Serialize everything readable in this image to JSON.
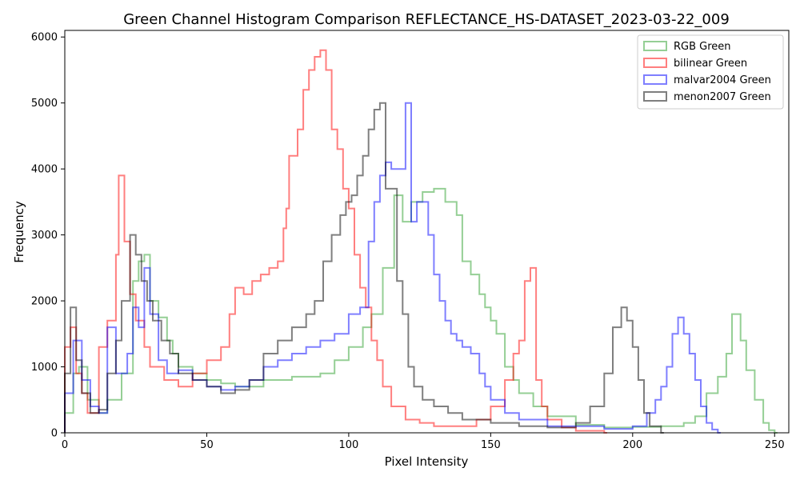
{
  "chart_data": {
    "type": "histogram",
    "title": "Green Channel Histogram Comparison REFLECTANCE_HS-DATASET_2023-03-22_009",
    "xlabel": "Pixel Intensity",
    "ylabel": "Frequency",
    "xlim": [
      0,
      255
    ],
    "ylim": [
      0,
      6100
    ],
    "xticks": [
      0,
      50,
      100,
      150,
      200,
      250
    ],
    "yticks": [
      0,
      1000,
      2000,
      3000,
      4000,
      5000,
      6000
    ],
    "grid": false,
    "legend_position": "top-right",
    "series": [
      {
        "name": "RGB Green",
        "color": "#2ca02c",
        "points": [
          [
            0,
            300
          ],
          [
            3,
            900
          ],
          [
            5,
            1000
          ],
          [
            8,
            500
          ],
          [
            12,
            300
          ],
          [
            15,
            500
          ],
          [
            20,
            900
          ],
          [
            24,
            2300
          ],
          [
            26,
            2600
          ],
          [
            28,
            2700
          ],
          [
            30,
            2000
          ],
          [
            33,
            1750
          ],
          [
            36,
            1400
          ],
          [
            38,
            1200
          ],
          [
            40,
            1000
          ],
          [
            45,
            900
          ],
          [
            50,
            800
          ],
          [
            55,
            750
          ],
          [
            60,
            700
          ],
          [
            70,
            800
          ],
          [
            80,
            850
          ],
          [
            90,
            900
          ],
          [
            95,
            1100
          ],
          [
            100,
            1300
          ],
          [
            105,
            1600
          ],
          [
            108,
            1800
          ],
          [
            112,
            2500
          ],
          [
            116,
            3600
          ],
          [
            119,
            3200
          ],
          [
            122,
            3500
          ],
          [
            126,
            3650
          ],
          [
            130,
            3700
          ],
          [
            134,
            3500
          ],
          [
            138,
            3300
          ],
          [
            140,
            2600
          ],
          [
            143,
            2400
          ],
          [
            146,
            2100
          ],
          [
            148,
            1900
          ],
          [
            150,
            1700
          ],
          [
            152,
            1500
          ],
          [
            155,
            1000
          ],
          [
            158,
            800
          ],
          [
            160,
            600
          ],
          [
            165,
            400
          ],
          [
            170,
            250
          ],
          [
            180,
            120
          ],
          [
            190,
            80
          ],
          [
            200,
            90
          ],
          [
            210,
            100
          ],
          [
            218,
            150
          ],
          [
            222,
            250
          ],
          [
            226,
            600
          ],
          [
            230,
            850
          ],
          [
            233,
            1200
          ],
          [
            235,
            1800
          ],
          [
            238,
            1400
          ],
          [
            240,
            950
          ],
          [
            243,
            500
          ],
          [
            246,
            150
          ],
          [
            248,
            40
          ],
          [
            250,
            0
          ]
        ]
      },
      {
        "name": "bilinear Green",
        "color": "#ff0000",
        "points": [
          [
            0,
            1300
          ],
          [
            2,
            1600
          ],
          [
            4,
            900
          ],
          [
            6,
            600
          ],
          [
            8,
            300
          ],
          [
            12,
            1300
          ],
          [
            15,
            1700
          ],
          [
            18,
            2700
          ],
          [
            19,
            3900
          ],
          [
            21,
            2900
          ],
          [
            23,
            2100
          ],
          [
            25,
            1700
          ],
          [
            28,
            1300
          ],
          [
            30,
            1000
          ],
          [
            35,
            800
          ],
          [
            40,
            700
          ],
          [
            45,
            900
          ],
          [
            50,
            1100
          ],
          [
            55,
            1300
          ],
          [
            58,
            1800
          ],
          [
            60,
            2200
          ],
          [
            63,
            2100
          ],
          [
            66,
            2300
          ],
          [
            69,
            2400
          ],
          [
            72,
            2500
          ],
          [
            75,
            2600
          ],
          [
            77,
            3100
          ],
          [
            78,
            3400
          ],
          [
            79,
            4200
          ],
          [
            82,
            4600
          ],
          [
            84,
            5200
          ],
          [
            86,
            5500
          ],
          [
            88,
            5700
          ],
          [
            90,
            5800
          ],
          [
            92,
            5500
          ],
          [
            94,
            4600
          ],
          [
            96,
            4300
          ],
          [
            98,
            3700
          ],
          [
            100,
            3400
          ],
          [
            102,
            2700
          ],
          [
            104,
            2200
          ],
          [
            106,
            1900
          ],
          [
            108,
            1400
          ],
          [
            110,
            1100
          ],
          [
            112,
            700
          ],
          [
            115,
            400
          ],
          [
            120,
            200
          ],
          [
            125,
            150
          ],
          [
            130,
            100
          ],
          [
            140,
            100
          ],
          [
            145,
            200
          ],
          [
            150,
            400
          ],
          [
            155,
            800
          ],
          [
            158,
            1200
          ],
          [
            160,
            1400
          ],
          [
            162,
            2300
          ],
          [
            164,
            2500
          ],
          [
            166,
            800
          ],
          [
            168,
            400
          ],
          [
            170,
            200
          ],
          [
            175,
            80
          ],
          [
            180,
            30
          ],
          [
            190,
            0
          ]
        ]
      },
      {
        "name": "malvar2004 Green",
        "color": "#0000ff",
        "points": [
          [
            0,
            600
          ],
          [
            3,
            1400
          ],
          [
            6,
            800
          ],
          [
            9,
            400
          ],
          [
            12,
            300
          ],
          [
            15,
            1600
          ],
          [
            18,
            900
          ],
          [
            22,
            1200
          ],
          [
            24,
            1900
          ],
          [
            26,
            1600
          ],
          [
            28,
            2500
          ],
          [
            30,
            1800
          ],
          [
            33,
            1100
          ],
          [
            36,
            900
          ],
          [
            40,
            950
          ],
          [
            45,
            800
          ],
          [
            50,
            700
          ],
          [
            55,
            650
          ],
          [
            60,
            700
          ],
          [
            65,
            800
          ],
          [
            70,
            1000
          ],
          [
            75,
            1100
          ],
          [
            80,
            1200
          ],
          [
            85,
            1300
          ],
          [
            90,
            1400
          ],
          [
            95,
            1500
          ],
          [
            100,
            1800
          ],
          [
            104,
            1900
          ],
          [
            107,
            2900
          ],
          [
            109,
            3500
          ],
          [
            111,
            3900
          ],
          [
            113,
            4100
          ],
          [
            115,
            4000
          ],
          [
            118,
            4000
          ],
          [
            120,
            5000
          ],
          [
            122,
            3200
          ],
          [
            124,
            3500
          ],
          [
            126,
            3500
          ],
          [
            128,
            3000
          ],
          [
            130,
            2400
          ],
          [
            132,
            2000
          ],
          [
            134,
            1700
          ],
          [
            136,
            1500
          ],
          [
            138,
            1400
          ],
          [
            140,
            1300
          ],
          [
            143,
            1200
          ],
          [
            146,
            900
          ],
          [
            148,
            700
          ],
          [
            150,
            500
          ],
          [
            155,
            300
          ],
          [
            160,
            200
          ],
          [
            170,
            100
          ],
          [
            190,
            60
          ],
          [
            200,
            100
          ],
          [
            205,
            300
          ],
          [
            208,
            500
          ],
          [
            210,
            700
          ],
          [
            212,
            1000
          ],
          [
            214,
            1500
          ],
          [
            216,
            1750
          ],
          [
            218,
            1500
          ],
          [
            220,
            1200
          ],
          [
            222,
            800
          ],
          [
            224,
            400
          ],
          [
            226,
            150
          ],
          [
            228,
            50
          ],
          [
            230,
            0
          ]
        ]
      },
      {
        "name": "menon2007 Green",
        "color": "#000000",
        "points": [
          [
            0,
            900
          ],
          [
            2,
            1900
          ],
          [
            4,
            1100
          ],
          [
            6,
            600
          ],
          [
            9,
            300
          ],
          [
            12,
            350
          ],
          [
            15,
            900
          ],
          [
            18,
            1400
          ],
          [
            20,
            2000
          ],
          [
            23,
            3000
          ],
          [
            25,
            2700
          ],
          [
            27,
            2300
          ],
          [
            29,
            2000
          ],
          [
            31,
            1700
          ],
          [
            34,
            1400
          ],
          [
            37,
            1200
          ],
          [
            40,
            900
          ],
          [
            45,
            800
          ],
          [
            50,
            700
          ],
          [
            55,
            600
          ],
          [
            60,
            650
          ],
          [
            65,
            800
          ],
          [
            70,
            1200
          ],
          [
            75,
            1400
          ],
          [
            80,
            1600
          ],
          [
            85,
            1800
          ],
          [
            88,
            2000
          ],
          [
            91,
            2600
          ],
          [
            94,
            3000
          ],
          [
            97,
            3300
          ],
          [
            99,
            3500
          ],
          [
            101,
            3600
          ],
          [
            103,
            3900
          ],
          [
            105,
            4200
          ],
          [
            107,
            4600
          ],
          [
            109,
            4900
          ],
          [
            111,
            5000
          ],
          [
            113,
            3700
          ],
          [
            115,
            3700
          ],
          [
            117,
            2300
          ],
          [
            119,
            1800
          ],
          [
            121,
            1000
          ],
          [
            123,
            700
          ],
          [
            126,
            500
          ],
          [
            130,
            400
          ],
          [
            135,
            300
          ],
          [
            140,
            200
          ],
          [
            150,
            150
          ],
          [
            160,
            100
          ],
          [
            170,
            80
          ],
          [
            180,
            150
          ],
          [
            185,
            400
          ],
          [
            190,
            900
          ],
          [
            193,
            1600
          ],
          [
            196,
            1900
          ],
          [
            198,
            1700
          ],
          [
            200,
            1300
          ],
          [
            202,
            800
          ],
          [
            204,
            300
          ],
          [
            206,
            100
          ],
          [
            210,
            0
          ]
        ]
      }
    ]
  }
}
